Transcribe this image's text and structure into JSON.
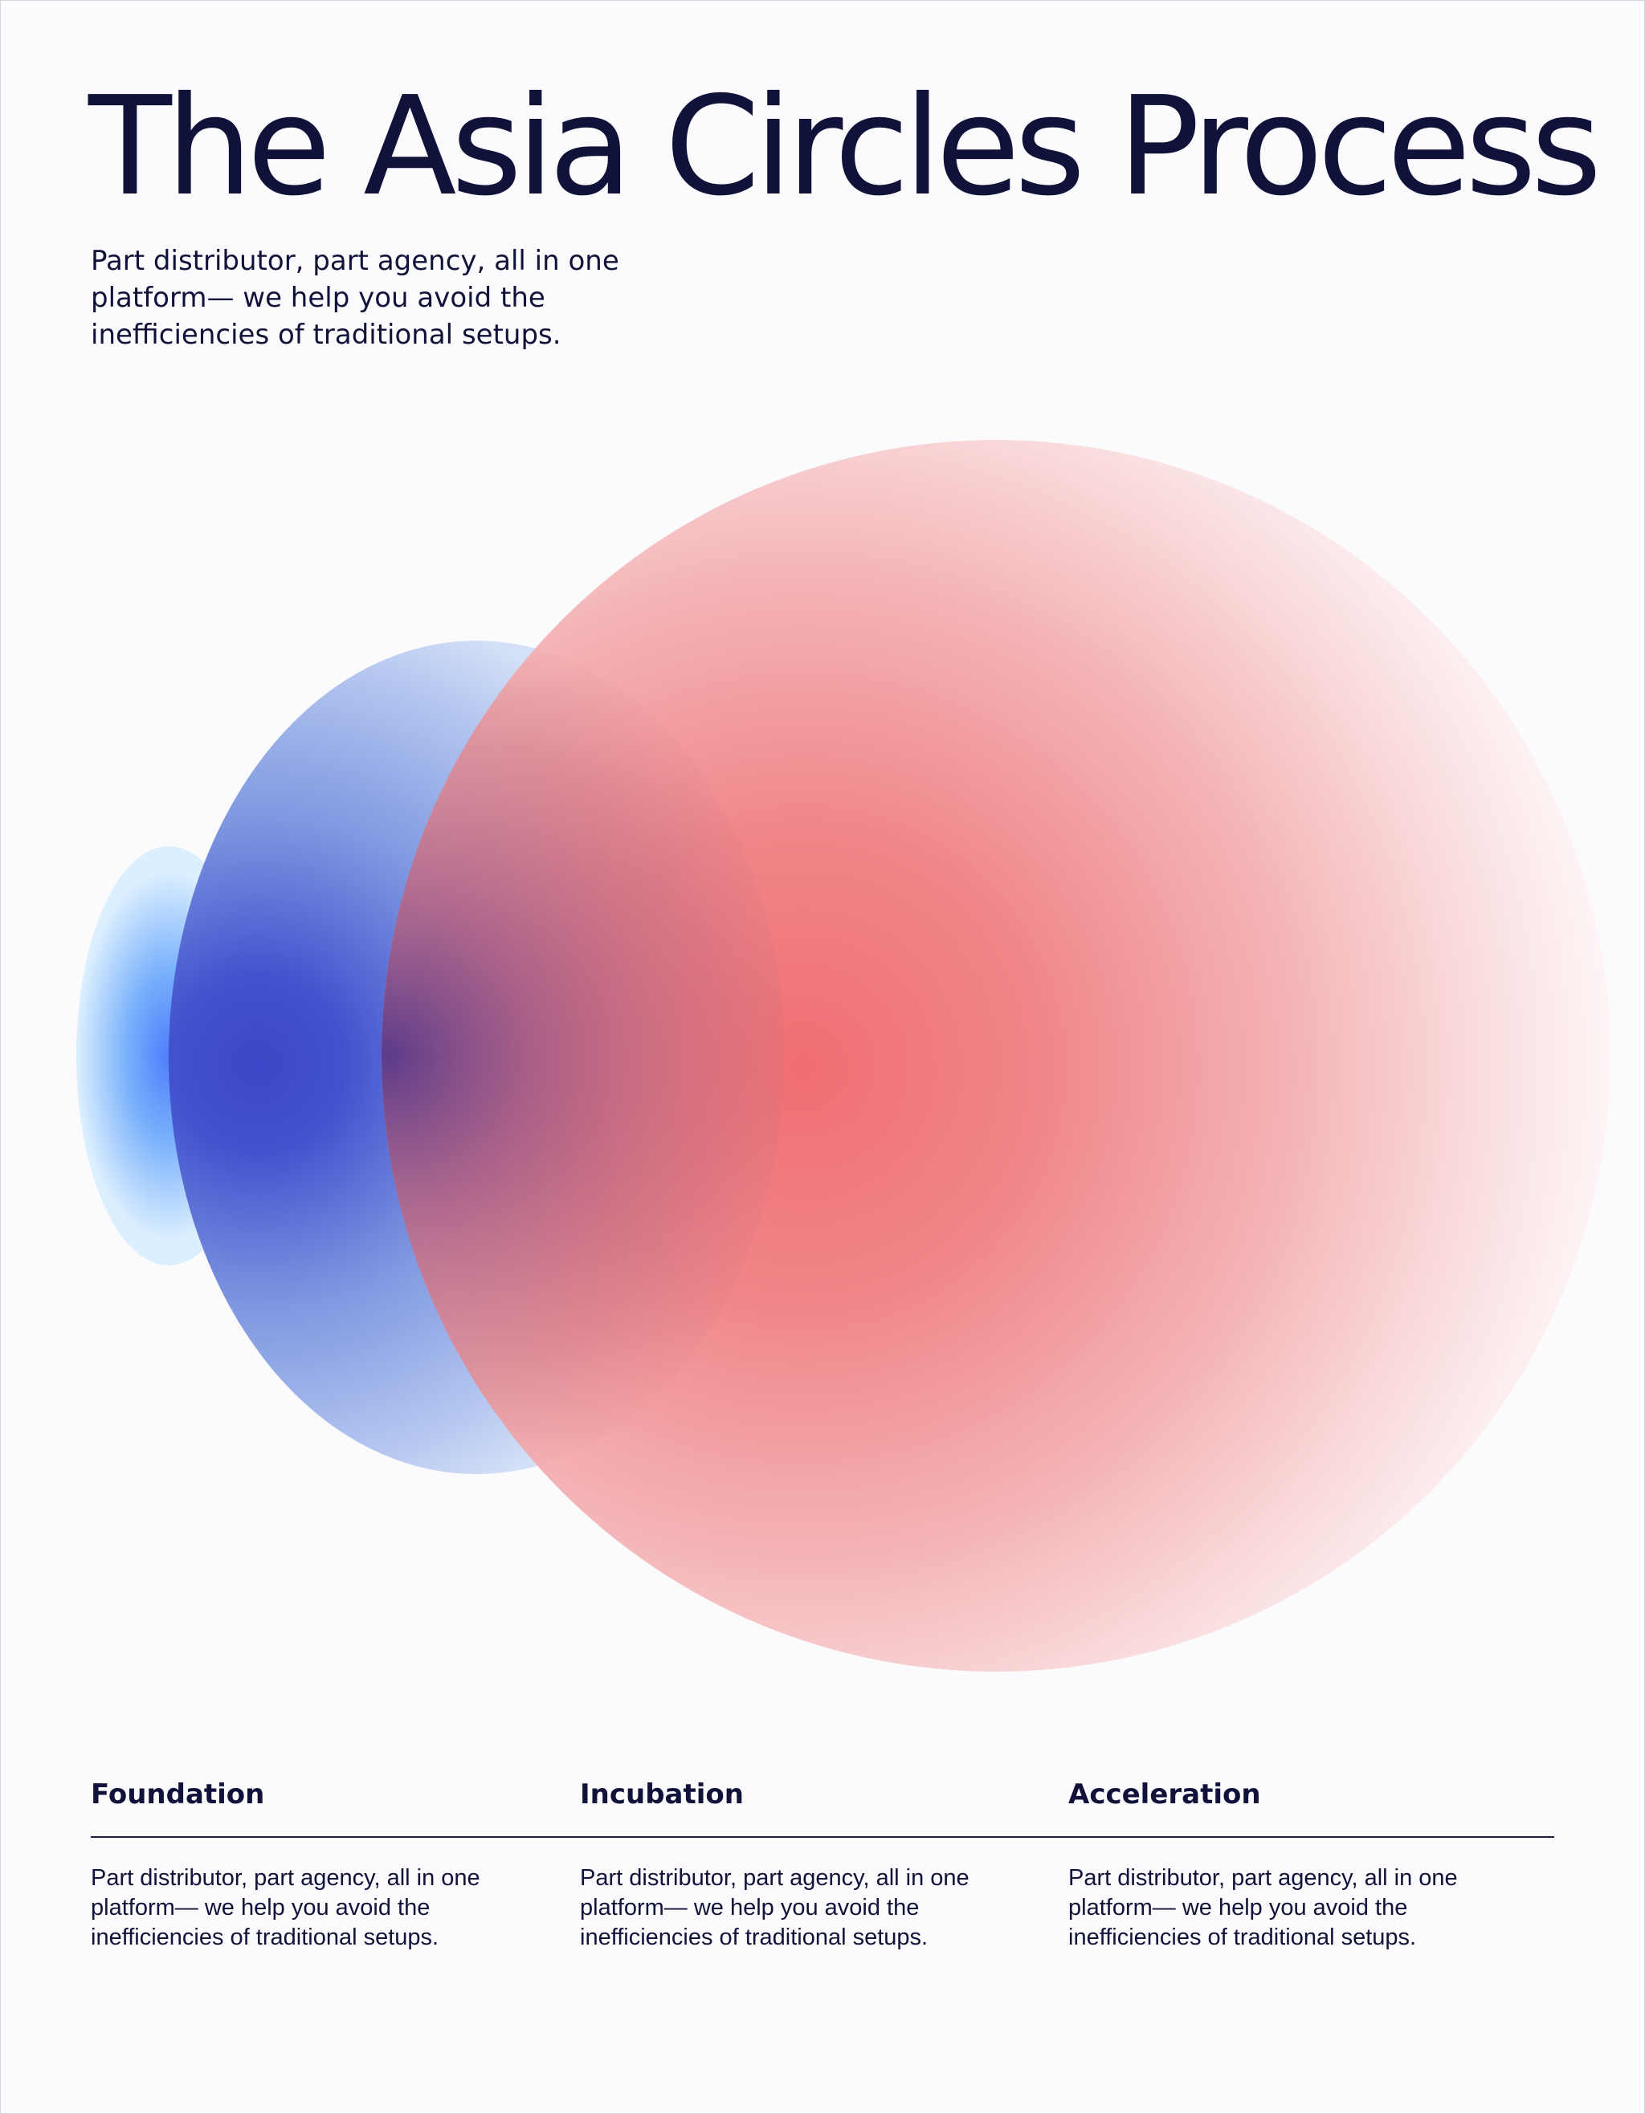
{
  "header": {
    "title": "The Asia Circles Process",
    "subtitle": "Part distributor, part agency, all in one platform— we help you avoid the inefficiencies of traditional setups."
  },
  "colors": {
    "text": "#11123a",
    "small_circle": "#4f7dfb",
    "medium_circle": "#3d4fd1",
    "large_circle": "#f07374"
  },
  "steps": [
    {
      "title": "Foundation",
      "text": "Part distributor, part agency, all in one platform— we help you avoid the inefficiencies of traditional setups."
    },
    {
      "title": "Incubation",
      "text": "Part distributor, part agency, all in one platform— we help you avoid the inefficiencies of traditional setups."
    },
    {
      "title": "Acceleration",
      "text": "Part distributor, part agency, all in one platform— we help you avoid the inefficiencies of traditional setups."
    }
  ]
}
